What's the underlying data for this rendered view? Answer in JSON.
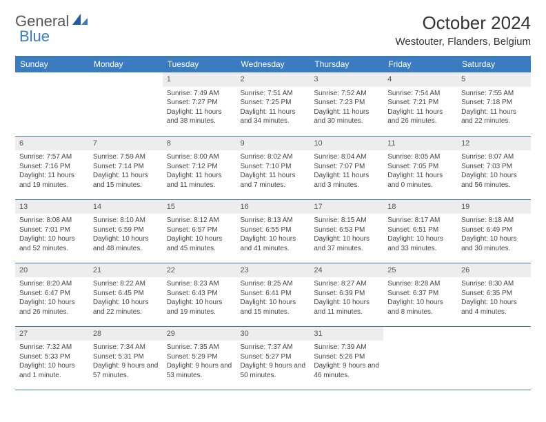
{
  "brand": {
    "word1": "General",
    "word2": "Blue"
  },
  "title": "October 2024",
  "location": "Westouter, Flanders, Belgium",
  "header_bg": "#3b7bbf",
  "daynum_bg": "#ededed",
  "weekdays": [
    "Sunday",
    "Monday",
    "Tuesday",
    "Wednesday",
    "Thursday",
    "Friday",
    "Saturday"
  ],
  "weeks": [
    [
      {
        "n": "",
        "sr": "",
        "ss": "",
        "dl": ""
      },
      {
        "n": "",
        "sr": "",
        "ss": "",
        "dl": ""
      },
      {
        "n": "1",
        "sr": "Sunrise: 7:49 AM",
        "ss": "Sunset: 7:27 PM",
        "dl": "Daylight: 11 hours and 38 minutes."
      },
      {
        "n": "2",
        "sr": "Sunrise: 7:51 AM",
        "ss": "Sunset: 7:25 PM",
        "dl": "Daylight: 11 hours and 34 minutes."
      },
      {
        "n": "3",
        "sr": "Sunrise: 7:52 AM",
        "ss": "Sunset: 7:23 PM",
        "dl": "Daylight: 11 hours and 30 minutes."
      },
      {
        "n": "4",
        "sr": "Sunrise: 7:54 AM",
        "ss": "Sunset: 7:21 PM",
        "dl": "Daylight: 11 hours and 26 minutes."
      },
      {
        "n": "5",
        "sr": "Sunrise: 7:55 AM",
        "ss": "Sunset: 7:18 PM",
        "dl": "Daylight: 11 hours and 22 minutes."
      }
    ],
    [
      {
        "n": "6",
        "sr": "Sunrise: 7:57 AM",
        "ss": "Sunset: 7:16 PM",
        "dl": "Daylight: 11 hours and 19 minutes."
      },
      {
        "n": "7",
        "sr": "Sunrise: 7:59 AM",
        "ss": "Sunset: 7:14 PM",
        "dl": "Daylight: 11 hours and 15 minutes."
      },
      {
        "n": "8",
        "sr": "Sunrise: 8:00 AM",
        "ss": "Sunset: 7:12 PM",
        "dl": "Daylight: 11 hours and 11 minutes."
      },
      {
        "n": "9",
        "sr": "Sunrise: 8:02 AM",
        "ss": "Sunset: 7:10 PM",
        "dl": "Daylight: 11 hours and 7 minutes."
      },
      {
        "n": "10",
        "sr": "Sunrise: 8:04 AM",
        "ss": "Sunset: 7:07 PM",
        "dl": "Daylight: 11 hours and 3 minutes."
      },
      {
        "n": "11",
        "sr": "Sunrise: 8:05 AM",
        "ss": "Sunset: 7:05 PM",
        "dl": "Daylight: 11 hours and 0 minutes."
      },
      {
        "n": "12",
        "sr": "Sunrise: 8:07 AM",
        "ss": "Sunset: 7:03 PM",
        "dl": "Daylight: 10 hours and 56 minutes."
      }
    ],
    [
      {
        "n": "13",
        "sr": "Sunrise: 8:08 AM",
        "ss": "Sunset: 7:01 PM",
        "dl": "Daylight: 10 hours and 52 minutes."
      },
      {
        "n": "14",
        "sr": "Sunrise: 8:10 AM",
        "ss": "Sunset: 6:59 PM",
        "dl": "Daylight: 10 hours and 48 minutes."
      },
      {
        "n": "15",
        "sr": "Sunrise: 8:12 AM",
        "ss": "Sunset: 6:57 PM",
        "dl": "Daylight: 10 hours and 45 minutes."
      },
      {
        "n": "16",
        "sr": "Sunrise: 8:13 AM",
        "ss": "Sunset: 6:55 PM",
        "dl": "Daylight: 10 hours and 41 minutes."
      },
      {
        "n": "17",
        "sr": "Sunrise: 8:15 AM",
        "ss": "Sunset: 6:53 PM",
        "dl": "Daylight: 10 hours and 37 minutes."
      },
      {
        "n": "18",
        "sr": "Sunrise: 8:17 AM",
        "ss": "Sunset: 6:51 PM",
        "dl": "Daylight: 10 hours and 33 minutes."
      },
      {
        "n": "19",
        "sr": "Sunrise: 8:18 AM",
        "ss": "Sunset: 6:49 PM",
        "dl": "Daylight: 10 hours and 30 minutes."
      }
    ],
    [
      {
        "n": "20",
        "sr": "Sunrise: 8:20 AM",
        "ss": "Sunset: 6:47 PM",
        "dl": "Daylight: 10 hours and 26 minutes."
      },
      {
        "n": "21",
        "sr": "Sunrise: 8:22 AM",
        "ss": "Sunset: 6:45 PM",
        "dl": "Daylight: 10 hours and 22 minutes."
      },
      {
        "n": "22",
        "sr": "Sunrise: 8:23 AM",
        "ss": "Sunset: 6:43 PM",
        "dl": "Daylight: 10 hours and 19 minutes."
      },
      {
        "n": "23",
        "sr": "Sunrise: 8:25 AM",
        "ss": "Sunset: 6:41 PM",
        "dl": "Daylight: 10 hours and 15 minutes."
      },
      {
        "n": "24",
        "sr": "Sunrise: 8:27 AM",
        "ss": "Sunset: 6:39 PM",
        "dl": "Daylight: 10 hours and 11 minutes."
      },
      {
        "n": "25",
        "sr": "Sunrise: 8:28 AM",
        "ss": "Sunset: 6:37 PM",
        "dl": "Daylight: 10 hours and 8 minutes."
      },
      {
        "n": "26",
        "sr": "Sunrise: 8:30 AM",
        "ss": "Sunset: 6:35 PM",
        "dl": "Daylight: 10 hours and 4 minutes."
      }
    ],
    [
      {
        "n": "27",
        "sr": "Sunrise: 7:32 AM",
        "ss": "Sunset: 5:33 PM",
        "dl": "Daylight: 10 hours and 1 minute."
      },
      {
        "n": "28",
        "sr": "Sunrise: 7:34 AM",
        "ss": "Sunset: 5:31 PM",
        "dl": "Daylight: 9 hours and 57 minutes."
      },
      {
        "n": "29",
        "sr": "Sunrise: 7:35 AM",
        "ss": "Sunset: 5:29 PM",
        "dl": "Daylight: 9 hours and 53 minutes."
      },
      {
        "n": "30",
        "sr": "Sunrise: 7:37 AM",
        "ss": "Sunset: 5:27 PM",
        "dl": "Daylight: 9 hours and 50 minutes."
      },
      {
        "n": "31",
        "sr": "Sunrise: 7:39 AM",
        "ss": "Sunset: 5:26 PM",
        "dl": "Daylight: 9 hours and 46 minutes."
      },
      {
        "n": "",
        "sr": "",
        "ss": "",
        "dl": ""
      },
      {
        "n": "",
        "sr": "",
        "ss": "",
        "dl": ""
      }
    ]
  ]
}
